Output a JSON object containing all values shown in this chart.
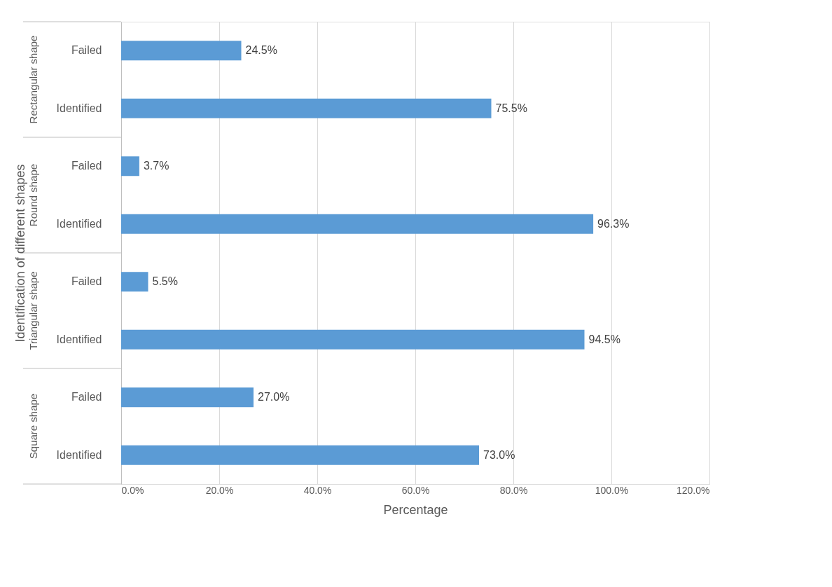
{
  "chart_data": {
    "type": "bar",
    "orientation": "horizontal",
    "categories": [
      "Failed",
      "Identified",
      "Failed",
      "Identified",
      "Failed",
      "Identified",
      "Failed",
      "Identified"
    ],
    "values": [
      24.5,
      75.5,
      3.7,
      96.3,
      5.5,
      94.5,
      27.0,
      73.0
    ],
    "value_labels": [
      "24.5%",
      "75.5%",
      "3.7%",
      "96.3%",
      "5.5%",
      "94.5%",
      "27.0%",
      "73.0%"
    ],
    "color": "#5b9bd5",
    "xlabel": "Percentage",
    "ylabel": "Identification of different shapes",
    "annotations": [
      "Rectangular shape",
      "Round shape",
      "Triangular shape",
      "Square shape"
    ],
    "xlim": [
      0,
      120
    ],
    "xticks": [
      {
        "value": 0,
        "label": "0.0%"
      },
      {
        "value": 20,
        "label": "20.0%"
      },
      {
        "value": 40,
        "label": "40.0%"
      },
      {
        "value": 60,
        "label": "60.0%"
      },
      {
        "value": 80,
        "label": "80.0%"
      },
      {
        "value": 100,
        "label": "100.0%"
      },
      {
        "value": 120,
        "label": "120.0%"
      }
    ],
    "grid": "x"
  }
}
